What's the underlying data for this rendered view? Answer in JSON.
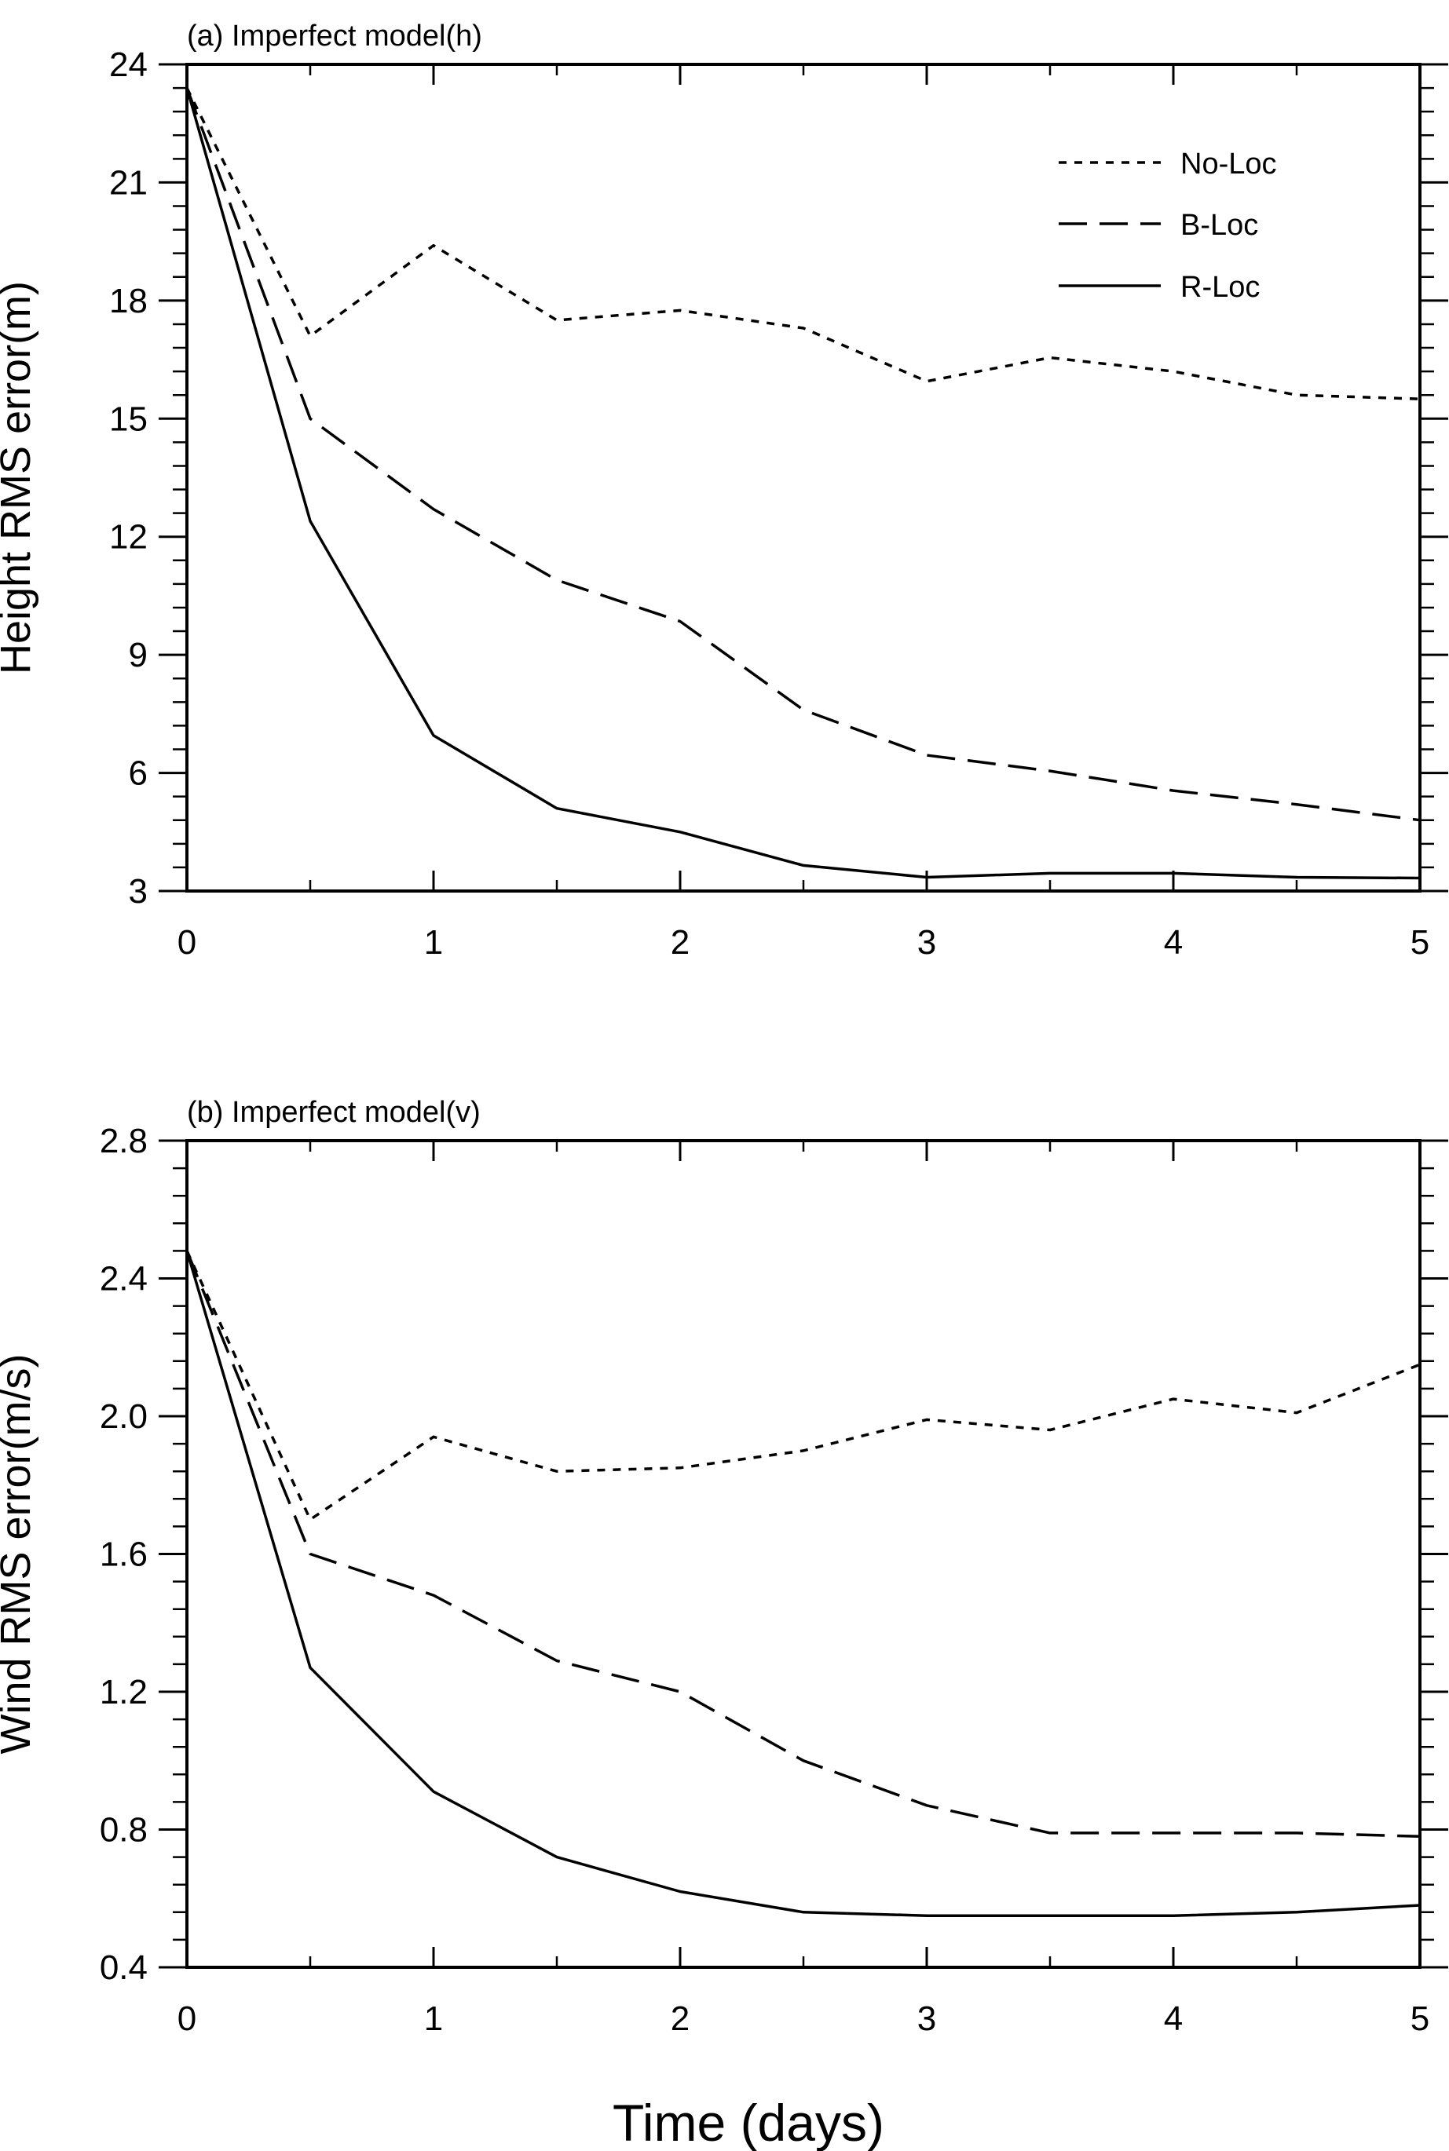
{
  "figure": {
    "xlabel": "Time (days)"
  },
  "legend": {
    "entries": [
      "No-Loc",
      "B-Loc",
      "R-Loc"
    ],
    "placement": "top-right"
  },
  "chart_data": [
    {
      "type": "line",
      "title": "(a) Imperfect model(h)",
      "xlabel": "Time (days)",
      "ylabel": "Height RMS error(m)",
      "xlim": [
        0,
        5
      ],
      "ylim": [
        3,
        24
      ],
      "xticks": [
        0,
        1,
        2,
        3,
        4,
        5
      ],
      "yticks": [
        3,
        6,
        9,
        12,
        15,
        18,
        21,
        24
      ],
      "ytick_labels": [
        "3",
        "6",
        "9",
        "12",
        "15",
        "18",
        "21",
        "24"
      ],
      "x": [
        0,
        0.5,
        1,
        1.5,
        2,
        2.5,
        3,
        3.5,
        4,
        4.5,
        5
      ],
      "grid": false,
      "legend": "top-right",
      "series": [
        {
          "name": "No-Loc",
          "style": "dotted",
          "values": [
            23.4,
            17.1,
            19.4,
            17.5,
            17.75,
            17.3,
            15.95,
            16.55,
            16.2,
            15.6,
            15.5
          ]
        },
        {
          "name": "B-Loc",
          "style": "dashed",
          "values": [
            23.4,
            15.0,
            12.7,
            10.9,
            9.85,
            7.6,
            6.45,
            6.05,
            5.55,
            5.2,
            4.8
          ]
        },
        {
          "name": "R-Loc",
          "style": "solid",
          "values": [
            23.4,
            12.4,
            6.95,
            5.1,
            4.5,
            3.65,
            3.35,
            3.45,
            3.45,
            3.35,
            3.33
          ]
        }
      ]
    },
    {
      "type": "line",
      "title": "(b) Imperfect model(v)",
      "xlabel": "Time (days)",
      "ylabel": "Wind RMS error(m/s)",
      "xlim": [
        0,
        5
      ],
      "ylim": [
        0.4,
        2.8
      ],
      "xticks": [
        0,
        1,
        2,
        3,
        4,
        5
      ],
      "yticks": [
        0.4,
        0.8,
        1.2,
        1.6,
        2.0,
        2.4,
        2.8
      ],
      "ytick_labels": [
        "0.4",
        "0.8",
        "1.2",
        "1.6",
        "2.0",
        "2.4",
        "2.8"
      ],
      "x": [
        0,
        0.5,
        1,
        1.5,
        2,
        2.5,
        3,
        3.5,
        4,
        4.5,
        5
      ],
      "grid": false,
      "series": [
        {
          "name": "No-Loc",
          "style": "dotted",
          "values": [
            2.48,
            1.7,
            1.94,
            1.84,
            1.85,
            1.9,
            1.99,
            1.96,
            2.05,
            2.01,
            2.15
          ]
        },
        {
          "name": "B-Loc",
          "style": "dashed",
          "values": [
            2.48,
            1.6,
            1.48,
            1.29,
            1.2,
            1.0,
            0.87,
            0.79,
            0.79,
            0.79,
            0.78
          ]
        },
        {
          "name": "R-Loc",
          "style": "solid",
          "values": [
            2.48,
            1.27,
            0.91,
            0.72,
            0.62,
            0.56,
            0.55,
            0.55,
            0.55,
            0.56,
            0.58
          ]
        }
      ]
    }
  ]
}
